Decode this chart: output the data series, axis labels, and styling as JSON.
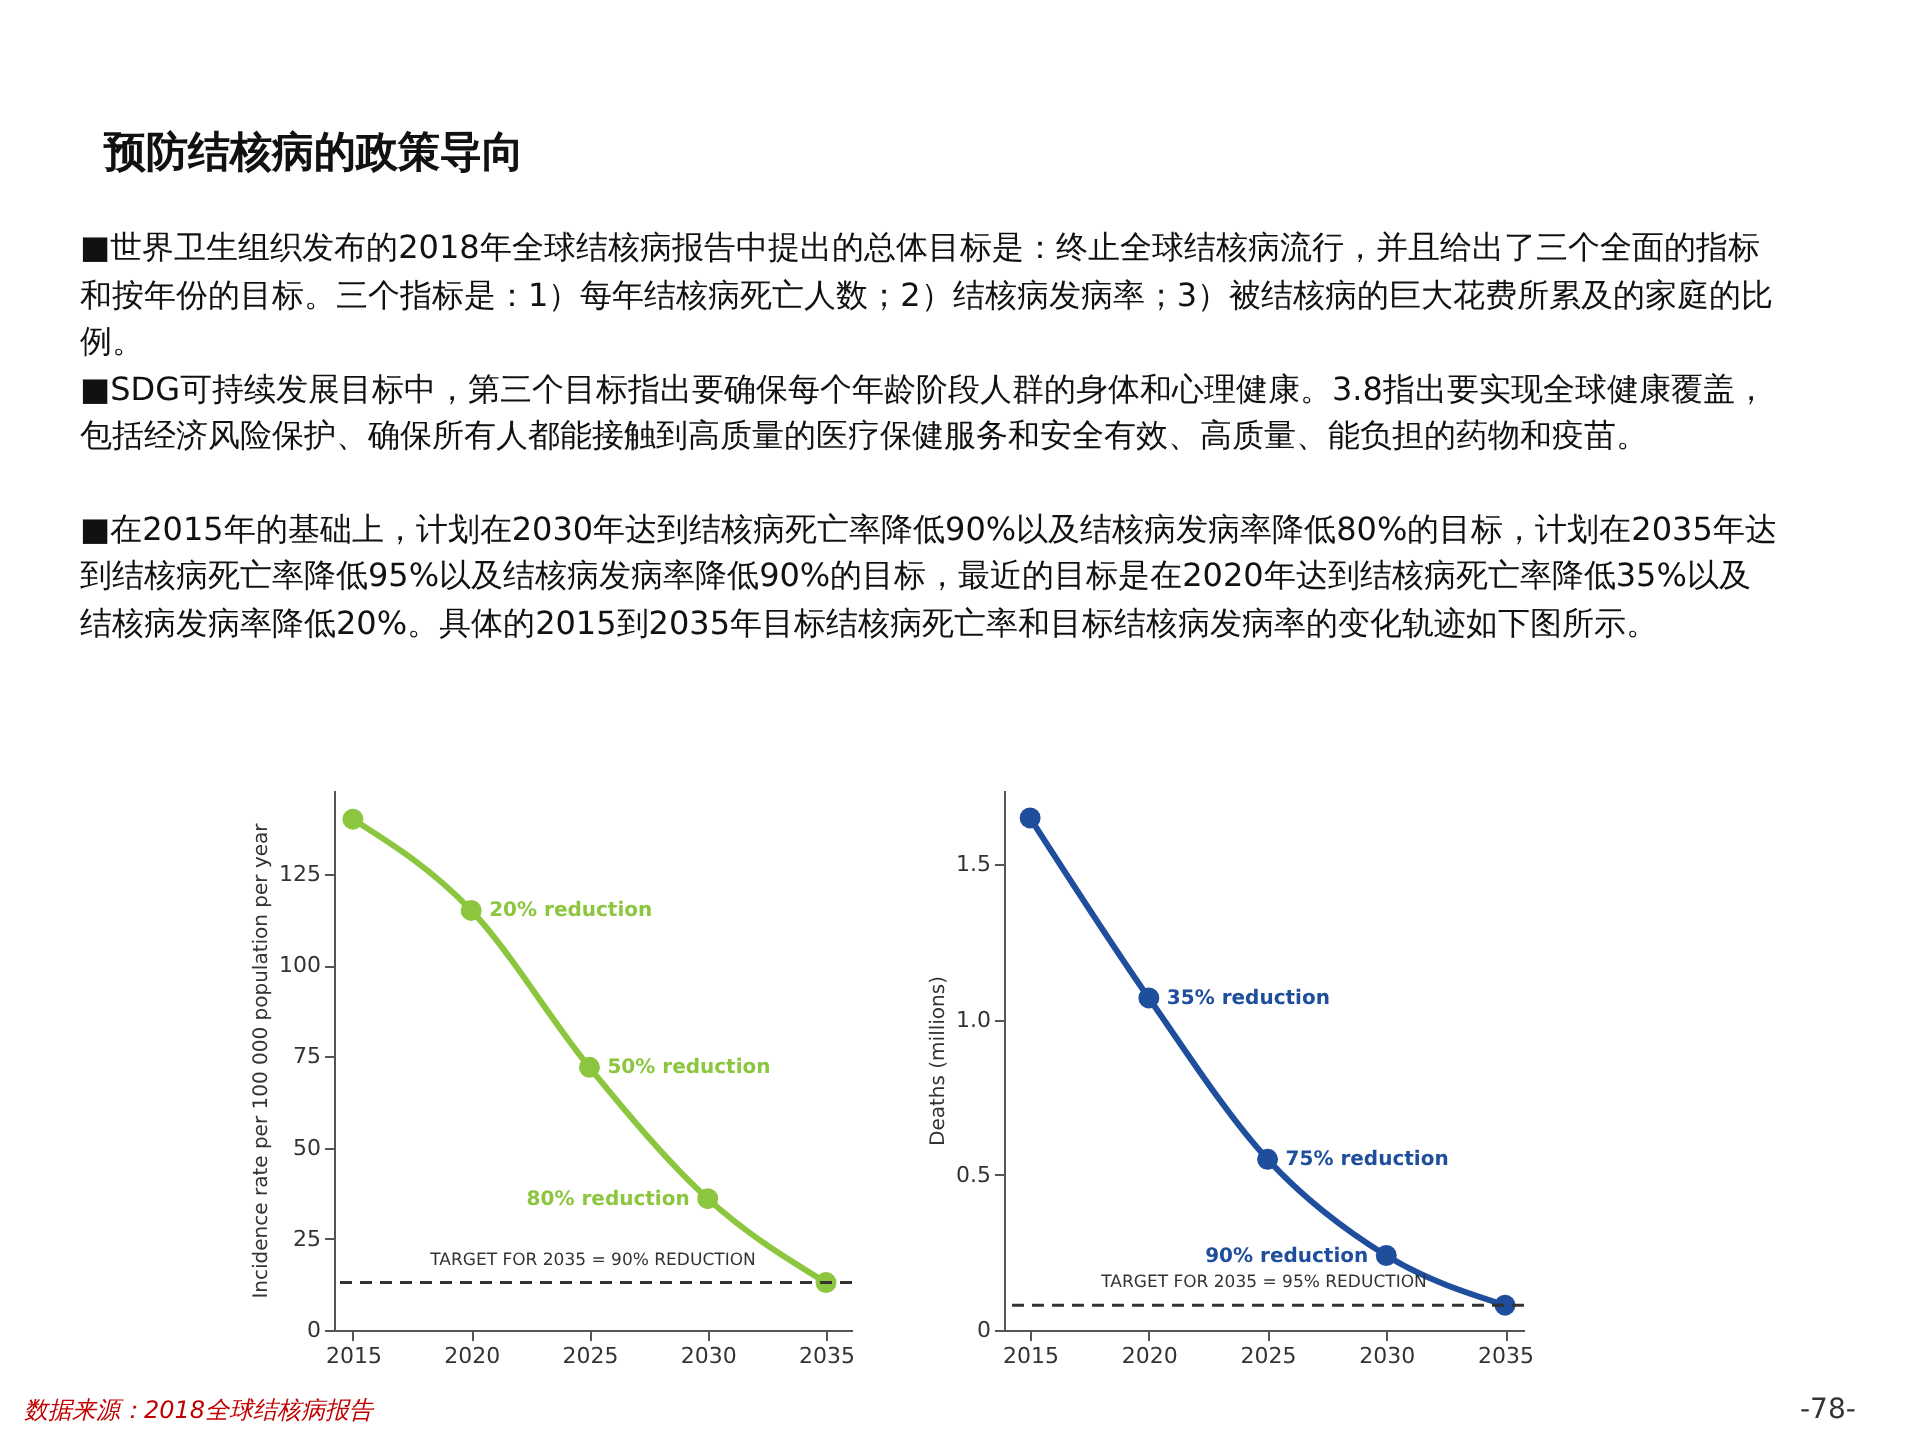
{
  "chart_data": [
    {
      "type": "other",
      "title": "预防结核病的政策导向",
      "annotations": [
        "■世界卫生组织发布的2018年全球结核病报告中提出的总体目标是：终止全球结核病流行，并且给出了三个全面的指标和按年份的目标。三个指标是：1）每年结核病死亡人数；2）结核病发病率；3）被结核病的巨大花费所累及的家庭的比例。",
        "■SDG可持续发展目标中，第三个目标指出要确保每个年龄阶段人群的身体和心理健康。3.8指出要实现全球健康覆盖，包括经济风险保护、确保所有人都能接触到高质量的医疗保健服务和安全有效、高质量、能负担的药物和疫苗。",
        "■在2015年的基础上，计划在2030年达到结核病死亡率降低90%以及结核病发病率降低80%的目标，计划在2035年达到结核病死亡率降低95%以及结核病发病率降低90%的目标，最近的目标是在2020年达到结核病死亡率降低35%以及结核病发病率降低20%。具体的2015到2035年目标结核病死亡率和目标结核病发病率的变化轨迹如下图所示。",
        "数据来源：2018全球结核病报告",
        "-78-"
      ]
    },
    {
      "type": "line",
      "ylabel": "Incidence rate per 100 000 population per year",
      "x": [
        2015,
        2020,
        2025,
        2030,
        2035
      ],
      "xlim": [
        2014.2,
        2036.1
      ],
      "xticks": [
        2015,
        2020,
        2025,
        2030,
        2035
      ],
      "ylim": [
        0,
        148
      ],
      "yticks": [
        0,
        25,
        50,
        75,
        100,
        125
      ],
      "marker": "circle",
      "line_style": "solid",
      "grid": false,
      "series": [
        {
          "color": "#8cc63f",
          "values": [
            140,
            115,
            72,
            36,
            13
          ]
        }
      ],
      "ref_lines": [
        {
          "axis": "y",
          "value": 13,
          "line_style": "dashed",
          "color": "#333333"
        }
      ],
      "annotations": [
        {
          "text": "20% reduction",
          "x": 2020,
          "y": 115
        },
        {
          "text": "50% reduction",
          "x": 2025,
          "y": 72
        },
        {
          "text": "80% reduction",
          "x": 2030,
          "y": 36
        },
        {
          "text": "TARGET FOR 2035 = 90% REDUCTION",
          "y": 13
        }
      ]
    },
    {
      "type": "line",
      "ylabel": "Deaths (millions)",
      "x": [
        2015,
        2020,
        2025,
        2030,
        2035
      ],
      "xlim": [
        2013.9,
        2035.8
      ],
      "xticks": [
        2015,
        2020,
        2025,
        2030,
        2035
      ],
      "ylim": [
        0,
        1.74
      ],
      "yticks": [
        0,
        0.5,
        {
          "value": 1,
          "label": "1.0"
        },
        1.5
      ],
      "marker": "circle",
      "line_style": "solid",
      "grid": false,
      "series": [
        {
          "color": "#1f4e9c",
          "values": [
            1.65,
            1.07,
            0.55,
            0.24,
            0.08
          ]
        }
      ],
      "ref_lines": [
        {
          "axis": "y",
          "value": 0.08,
          "line_style": "dashed",
          "color": "#333333"
        }
      ],
      "annotations": [
        {
          "text": "35% reduction",
          "x": 2020,
          "y": 1.07
        },
        {
          "text": "75% reduction",
          "x": 2025,
          "y": 0.55
        },
        {
          "text": "90% reduction",
          "x": 2030,
          "y": 0.24
        },
        {
          "text": "TARGET FOR 2035 = 95% REDUCTION",
          "y": 0.08
        }
      ]
    }
  ]
}
